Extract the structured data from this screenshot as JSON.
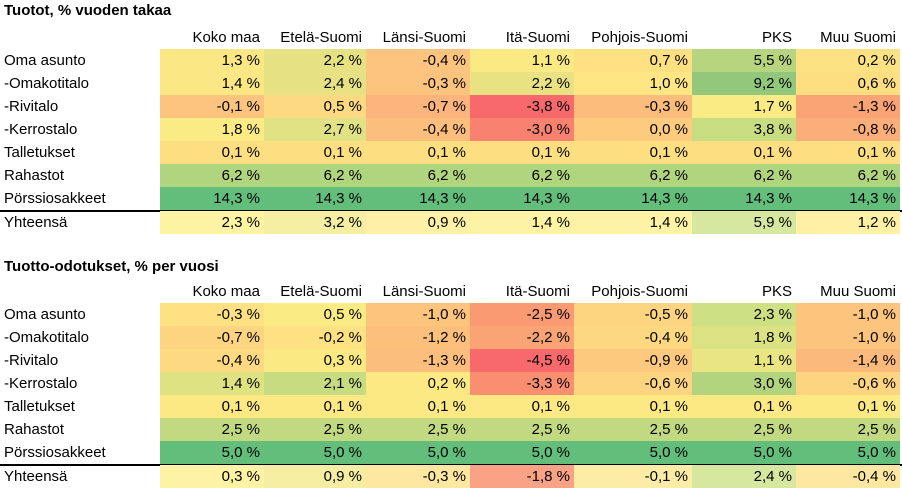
{
  "chart_data": [
    {
      "type": "table",
      "title": "Tuotot, % vuoden takaa",
      "columns": [
        "Koko maa",
        "Etelä-Suomi",
        "Länsi-Suomi",
        "Itä-Suomi",
        "Pohjois-Suomi",
        "PKS",
        "Muu Suomi"
      ],
      "rows": [
        {
          "label": "Oma asunto",
          "values": [
            "1,3 %",
            "2,2 %",
            "-0,4 %",
            "1,1 %",
            "0,7 %",
            "5,5 %",
            "0,2 %"
          ],
          "colors": [
            "#fbe885",
            "#e6e283",
            "#fcc47e",
            "#fbea84",
            "#fde081",
            "#b7d57f",
            "#fde283"
          ]
        },
        {
          "label": "-Omakotitalo",
          "values": [
            "1,4 %",
            "2,4 %",
            "-0,3 %",
            "2,2 %",
            "1,0 %",
            "9,2 %",
            "0,6 %"
          ],
          "colors": [
            "#fbe885",
            "#e6e283",
            "#fcc37e",
            "#e9e283",
            "#fde683",
            "#93c87c",
            "#fddf82"
          ]
        },
        {
          "label": "-Rivitalo",
          "values": [
            "-0,1 %",
            "0,5 %",
            "-0,7 %",
            "-3,8 %",
            "-0,3 %",
            "1,7 %",
            "-1,3 %"
          ],
          "colors": [
            "#fcc47e",
            "#fdd981",
            "#fbb47b",
            "#f8696b",
            "#fcbc7c",
            "#fbeb84",
            "#faa475"
          ]
        },
        {
          "label": "-Kerrostalo",
          "values": [
            "1,8 %",
            "2,7 %",
            "-0,4 %",
            "-3,0 %",
            "0,0 %",
            "3,8 %",
            "-0,8 %"
          ],
          "colors": [
            "#faeb84",
            "#e1e283",
            "#fcbe7d",
            "#f8816f",
            "#fdcb7e",
            "#c8dc81",
            "#fbae79"
          ]
        },
        {
          "label": "Talletukset",
          "values": [
            "0,1 %",
            "0,1 %",
            "0,1 %",
            "0,1 %",
            "0,1 %",
            "0,1 %",
            "0,1 %"
          ],
          "colors": [
            "#fddf82",
            "#fddf82",
            "#fddf82",
            "#fddf82",
            "#fddf82",
            "#fddf82",
            "#fddf82"
          ]
        },
        {
          "label": "Rahastot",
          "values": [
            "6,2 %",
            "6,2 %",
            "6,2 %",
            "6,2 %",
            "6,2 %",
            "6,2 %",
            "6,2 %"
          ],
          "colors": [
            "#b1d47f",
            "#b1d47f",
            "#b1d47f",
            "#b1d47f",
            "#b1d47f",
            "#b1d47f",
            "#b1d47f"
          ]
        },
        {
          "label": "Pörssiosakkeet",
          "values": [
            "14,3 %",
            "14,3 %",
            "14,3 %",
            "14,3 %",
            "14,3 %",
            "14,3 %",
            "14,3 %"
          ],
          "colors": [
            "#63be7b",
            "#63be7b",
            "#63be7b",
            "#63be7b",
            "#63be7b",
            "#63be7b",
            "#63be7b"
          ]
        }
      ],
      "total": {
        "label": "Yhteensä",
        "values": [
          "2,3 %",
          "3,2 %",
          "0,9 %",
          "1,4 %",
          "1,4 %",
          "5,9 %",
          "1,2 %"
        ],
        "colors": [
          "#fef2a3",
          "#f4eda2",
          "#fef1a7",
          "#fef2a5",
          "#fef2a5",
          "#d6e7a0",
          "#fef1a6"
        ]
      }
    },
    {
      "type": "table",
      "title": "Tuotto-odotukset, % per vuosi",
      "columns": [
        "Koko maa",
        "Etelä-Suomi",
        "Länsi-Suomi",
        "Itä-Suomi",
        "Pohjois-Suomi",
        "PKS",
        "Muu Suomi"
      ],
      "rows": [
        {
          "label": "Oma asunto",
          "values": [
            "-0,3 %",
            "0,5 %",
            "-1,0 %",
            "-2,5 %",
            "-0,5 %",
            "2,3 %",
            "-1,0 %"
          ],
          "colors": [
            "#fde182",
            "#fbeb84",
            "#fcc47d",
            "#fa9a73",
            "#fdd580",
            "#cde083",
            "#fcc47d"
          ]
        },
        {
          "label": "-Omakotitalo",
          "values": [
            "-0,7 %",
            "-0,2 %",
            "-1,2 %",
            "-2,2 %",
            "-0,4 %",
            "1,8 %",
            "-1,0 %"
          ],
          "colors": [
            "#fdd480",
            "#fde182",
            "#fcc07c",
            "#faa475",
            "#fdd881",
            "#dbe284",
            "#fcc47d"
          ]
        },
        {
          "label": "-Rivitalo",
          "values": [
            "-0,4 %",
            "0,3 %",
            "-1,3 %",
            "-4,5 %",
            "-0,9 %",
            "1,1 %",
            "-1,4 %"
          ],
          "colors": [
            "#fdda81",
            "#fbe984",
            "#fcbe7c",
            "#f8696b",
            "#fcc97e",
            "#eae583",
            "#fbba7b"
          ]
        },
        {
          "label": "-Kerrostalo",
          "values": [
            "1,4 %",
            "2,1 %",
            "0,2 %",
            "-3,3 %",
            "-0,6 %",
            "3,0 %",
            "-0,6 %"
          ],
          "colors": [
            "#dee282",
            "#c7db80",
            "#fde984",
            "#f98e70",
            "#fdd580",
            "#b2d47f",
            "#fdd580"
          ]
        },
        {
          "label": "Talletukset",
          "values": [
            "0,1 %",
            "0,1 %",
            "0,1 %",
            "0,1 %",
            "0,1 %",
            "0,1 %",
            "0,1 %"
          ],
          "colors": [
            "#fde984",
            "#fde984",
            "#fde984",
            "#fde984",
            "#fde984",
            "#fde984",
            "#fde984"
          ]
        },
        {
          "label": "Rahastot",
          "values": [
            "2,5 %",
            "2,5 %",
            "2,5 %",
            "2,5 %",
            "2,5 %",
            "2,5 %",
            "2,5 %"
          ],
          "colors": [
            "#c1d981",
            "#c1d981",
            "#c1d981",
            "#c1d981",
            "#c1d981",
            "#c1d981",
            "#c1d981"
          ]
        },
        {
          "label": "Pörssiosakkeet",
          "values": [
            "5,0 %",
            "5,0 %",
            "5,0 %",
            "5,0 %",
            "5,0 %",
            "5,0 %",
            "5,0 %"
          ],
          "colors": [
            "#63be7b",
            "#63be7b",
            "#63be7b",
            "#63be7b",
            "#63be7b",
            "#63be7b",
            "#63be7b"
          ]
        }
      ],
      "total": {
        "label": "Yhteensä",
        "values": [
          "0,3 %",
          "0,9 %",
          "-0,3 %",
          "-1,8 %",
          "-0,1 %",
          "2,4 %",
          "-0,4 %"
        ],
        "colors": [
          "#fef2a5",
          "#f4eda2",
          "#fee7a0",
          "#f9a285",
          "#fdeca5",
          "#d6e7a0",
          "#fde7a1"
        ]
      }
    }
  ]
}
